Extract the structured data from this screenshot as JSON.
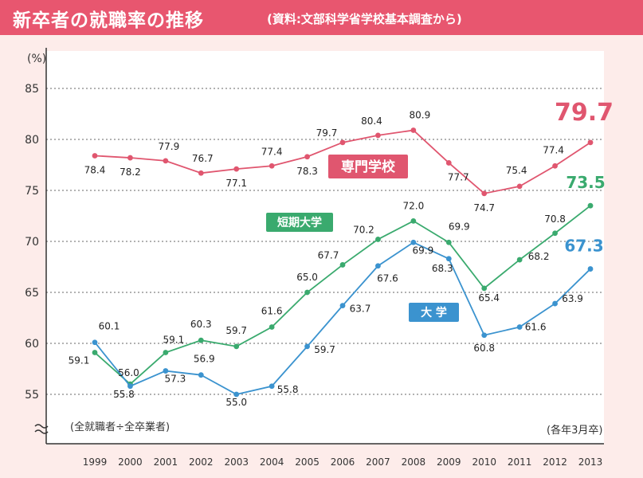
{
  "header": {
    "title": "新卒者の就職率の推移",
    "subtitle": "(資料:文部科学省学校基本調査から)"
  },
  "colors": {
    "banner": "#e8566f",
    "background": "#fdecea",
    "senmon": "#e0566f",
    "tandai": "#3aaa6e",
    "daigaku": "#3b93cf"
  },
  "chart_data": {
    "type": "line",
    "title": "新卒者の就職率の推移",
    "subtitle": "(資料:文部科学省学校基本調査から)",
    "y_unit": "(%)",
    "x_note": "(各年3月卒)",
    "formula_note": "(全就職者÷全卒業者)",
    "ylim": [
      55,
      85
    ],
    "yticks": [
      55,
      60,
      65,
      70,
      75,
      80,
      85
    ],
    "grid": true,
    "x": [
      "1999",
      "2000",
      "2001",
      "2002",
      "2003",
      "2004",
      "2005",
      "2006",
      "2007",
      "2008",
      "2009",
      "2010",
      "2011",
      "2012",
      "2013"
    ],
    "series": [
      {
        "name": "専門学校",
        "color": "#e0566f",
        "values": [
          78.4,
          78.2,
          77.9,
          76.7,
          77.1,
          77.4,
          78.3,
          79.7,
          80.4,
          80.9,
          77.7,
          74.7,
          75.4,
          77.4,
          79.7
        ],
        "labels": [
          "78.4",
          "78.2",
          "77.9",
          "76.7",
          "77.1",
          "77.4",
          "78.3",
          "79.7",
          "80.4",
          "80.9",
          "77.7",
          "74.7",
          "75.4",
          "77.4",
          "79.7"
        ]
      },
      {
        "name": "短期大学",
        "color": "#3aaa6e",
        "values": [
          59.1,
          56.0,
          59.1,
          60.3,
          59.7,
          61.6,
          65.0,
          67.7,
          70.2,
          72.0,
          69.9,
          65.4,
          68.2,
          70.8,
          73.5
        ],
        "labels": [
          "59.1",
          "56.0",
          "59.1",
          "60.3",
          "59.7",
          "61.6",
          "65.0",
          "67.7",
          "70.2",
          "72.0",
          "69.9",
          "65.4",
          "68.2",
          "70.8",
          "73.5"
        ]
      },
      {
        "name": "大 学",
        "color": "#3b93cf",
        "values": [
          60.1,
          55.8,
          57.3,
          56.9,
          55.0,
          55.8,
          59.7,
          63.7,
          67.6,
          69.9,
          68.3,
          60.8,
          61.6,
          63.9,
          67.3
        ],
        "labels": [
          "60.1",
          "55.8",
          "57.3",
          "56.9",
          "55.0",
          "55.8",
          "59.7",
          "63.7",
          "67.6",
          "69.9",
          "68.3",
          "60.8",
          "61.6",
          "63.9",
          "67.3"
        ]
      }
    ]
  }
}
